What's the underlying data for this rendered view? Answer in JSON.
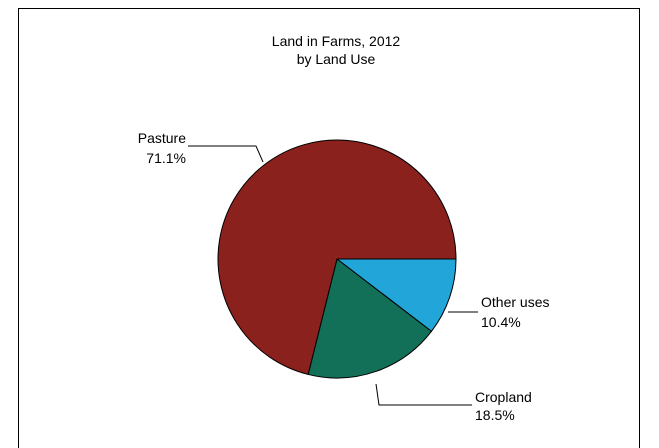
{
  "chart_data": {
    "type": "pie",
    "title": "Land in Farms, 2012",
    "subtitle": "by Land Use",
    "slices": [
      {
        "label": "Other uses",
        "value": 10.4,
        "display": "10.4%",
        "color": "#22a5d8"
      },
      {
        "label": "Cropland",
        "value": 18.5,
        "display": "18.5%",
        "color": "#137058"
      },
      {
        "label": "Pasture",
        "value": 71.1,
        "display": "71.1%",
        "color": "#8a211d"
      }
    ],
    "start_angle": "3 o'clock",
    "direction": "clockwise"
  }
}
